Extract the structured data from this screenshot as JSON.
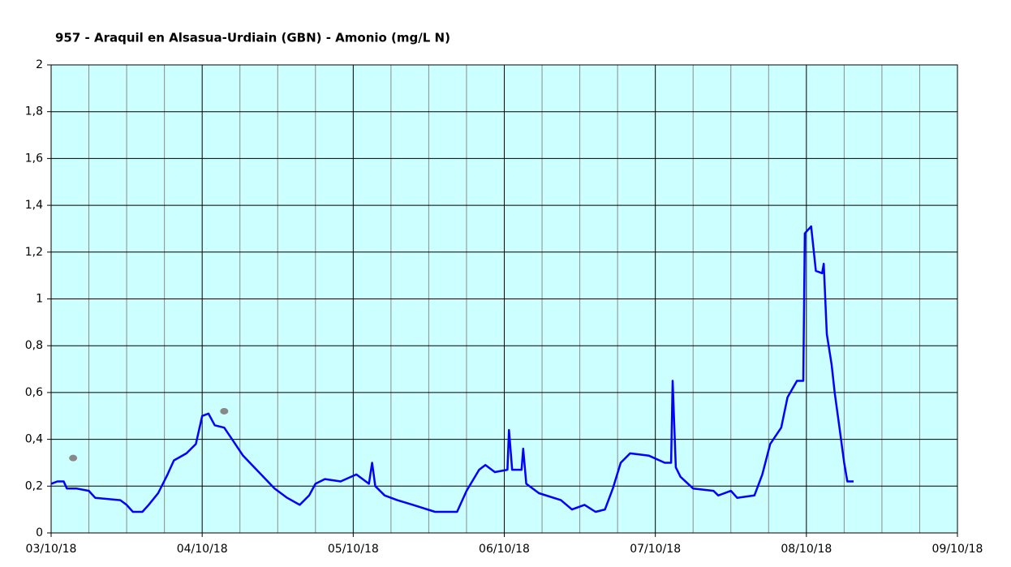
{
  "chart_data": {
    "type": "line",
    "title": "957 - Araquil en Alsasua-Urdiain (GBN) - Amonio (mg/L N)",
    "xlim": [
      "2018-10-03T00:00",
      "2018-10-09T00:00"
    ],
    "xticks": [
      {
        "value": "2018-10-03T00:00",
        "label": "03/10/18"
      },
      {
        "value": "2018-10-04T00:00",
        "label": "04/10/18"
      },
      {
        "value": "2018-10-05T00:00",
        "label": "05/10/18"
      },
      {
        "value": "2018-10-06T00:00",
        "label": "06/10/18"
      },
      {
        "value": "2018-10-07T00:00",
        "label": "07/10/18"
      },
      {
        "value": "2018-10-08T00:00",
        "label": "08/10/18"
      },
      {
        "value": "2018-10-09T00:00",
        "label": "09/10/18"
      }
    ],
    "x_minor_ticks": [
      "2018-10-03T06:00",
      "2018-10-03T12:00",
      "2018-10-03T18:00",
      "2018-10-04T06:00",
      "2018-10-04T12:00",
      "2018-10-04T18:00",
      "2018-10-05T06:00",
      "2018-10-05T12:00",
      "2018-10-05T18:00",
      "2018-10-06T06:00",
      "2018-10-06T12:00",
      "2018-10-06T18:00",
      "2018-10-07T06:00",
      "2018-10-07T12:00",
      "2018-10-07T18:00",
      "2018-10-08T06:00",
      "2018-10-08T12:00",
      "2018-10-08T18:00"
    ],
    "ylim": [
      0,
      2
    ],
    "yticks": [
      0,
      {
        "value": 0.2,
        "label": "0,2"
      },
      {
        "value": 0.4,
        "label": "0,4"
      },
      {
        "value": 0.6,
        "label": "0,6"
      },
      {
        "value": 0.8,
        "label": "0,8"
      },
      1,
      {
        "value": 1.2,
        "label": "1,2"
      },
      {
        "value": 1.4,
        "label": "1,4"
      },
      {
        "value": 1.6,
        "label": "1,6"
      },
      {
        "value": 1.8,
        "label": "1,8"
      },
      2
    ],
    "grid": true,
    "series": [
      {
        "color": "#0000ff",
        "marker": false,
        "x": [
          "2018-10-03T00:00",
          "2018-10-03T01:00",
          "2018-10-03T02:00",
          "2018-10-03T02:30",
          "2018-10-03T04:00",
          "2018-10-03T06:00",
          "2018-10-03T07:00",
          "2018-10-03T11:00",
          "2018-10-03T12:00",
          "2018-10-03T13:00",
          "2018-10-03T14:30",
          "2018-10-03T15:30",
          "2018-10-03T17:00",
          "2018-10-03T18:30",
          "2018-10-03T19:30",
          "2018-10-03T21:30",
          "2018-10-03T23:00",
          "2018-10-04T00:00",
          "2018-10-04T01:00",
          "2018-10-04T02:00",
          "2018-10-04T03:30",
          "2018-10-04T04:30",
          "2018-10-04T06:30",
          "2018-10-04T09:00",
          "2018-10-04T11:30",
          "2018-10-04T13:30",
          "2018-10-04T15:30",
          "2018-10-04T17:00",
          "2018-10-04T18:00",
          "2018-10-04T19:30",
          "2018-10-04T22:00",
          "2018-10-05T00:30",
          "2018-10-05T02:30",
          "2018-10-05T03:00",
          "2018-10-05T03:30",
          "2018-10-05T05:00",
          "2018-10-05T07:00",
          "2018-10-05T09:30",
          "2018-10-05T13:00",
          "2018-10-05T16:30",
          "2018-10-05T18:00",
          "2018-10-05T20:00",
          "2018-10-05T21:00",
          "2018-10-05T22:30",
          "2018-10-06T00:30",
          "2018-10-06T00:45",
          "2018-10-06T01:15",
          "2018-10-06T02:45",
          "2018-10-06T03:00",
          "2018-10-06T03:30",
          "2018-10-06T05:30",
          "2018-10-06T09:00",
          "2018-10-06T10:45",
          "2018-10-06T12:45",
          "2018-10-06T14:30",
          "2018-10-06T16:00",
          "2018-10-06T17:15",
          "2018-10-06T18:30",
          "2018-10-06T20:00",
          "2018-10-06T23:00",
          "2018-10-07T01:30",
          "2018-10-07T02:30",
          "2018-10-07T02:45",
          "2018-10-07T03:15",
          "2018-10-07T04:00",
          "2018-10-07T06:00",
          "2018-10-07T09:15",
          "2018-10-07T10:00",
          "2018-10-07T12:00",
          "2018-10-07T13:00",
          "2018-10-07T15:45",
          "2018-10-07T17:00",
          "2018-10-07T18:15",
          "2018-10-07T20:00",
          "2018-10-07T21:00",
          "2018-10-07T22:30",
          "2018-10-07T23:30",
          "2018-10-07T23:45",
          "2018-10-08T00:45",
          "2018-10-08T01:30",
          "2018-10-08T02:30",
          "2018-10-08T02:45",
          "2018-10-08T03:15",
          "2018-10-08T04:00",
          "2018-10-08T04:30",
          "2018-10-08T05:15",
          "2018-10-08T06:00",
          "2018-10-08T06:30",
          "2018-10-08T07:30"
        ],
        "values": [
          0.21,
          0.22,
          0.22,
          0.19,
          0.19,
          0.18,
          0.15,
          0.14,
          0.12,
          0.09,
          0.09,
          0.12,
          0.17,
          0.25,
          0.31,
          0.34,
          0.38,
          0.5,
          0.51,
          0.46,
          0.45,
          0.41,
          0.33,
          0.26,
          0.19,
          0.15,
          0.12,
          0.16,
          0.21,
          0.23,
          0.22,
          0.25,
          0.21,
          0.3,
          0.2,
          0.16,
          0.14,
          0.12,
          0.09,
          0.09,
          0.18,
          0.27,
          0.29,
          0.26,
          0.27,
          0.44,
          0.27,
          0.27,
          0.36,
          0.21,
          0.17,
          0.14,
          0.1,
          0.12,
          0.09,
          0.1,
          0.19,
          0.3,
          0.34,
          0.33,
          0.3,
          0.3,
          0.65,
          0.28,
          0.24,
          0.19,
          0.18,
          0.16,
          0.18,
          0.15,
          0.16,
          0.25,
          0.38,
          0.45,
          0.58,
          0.65,
          0.65,
          1.28,
          1.31,
          1.12,
          1.11,
          1.15,
          0.85,
          0.72,
          0.6,
          0.45,
          0.3,
          0.22,
          0.22
        ]
      },
      {
        "color": "#888888",
        "marker": true,
        "x": [
          "2018-10-03T03:30",
          "2018-10-04T03:30"
        ],
        "values": [
          0.32,
          0.52
        ]
      }
    ]
  }
}
